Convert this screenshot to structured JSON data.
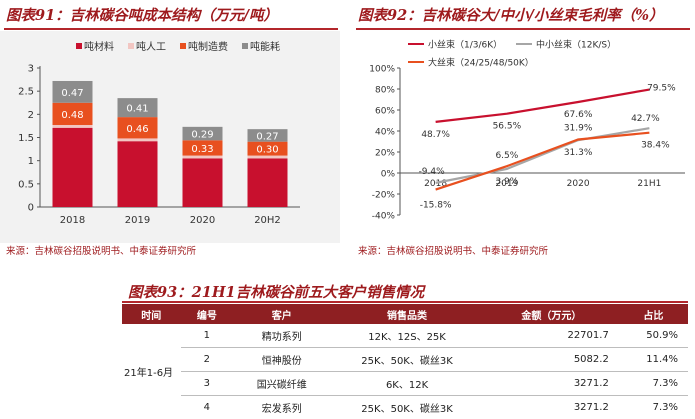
{
  "chart91": {
    "title": "图表91：吉林碳谷吨成本结构（万元/吨）",
    "source": "来源：吉林碳谷招股说明书、中泰证券研究所",
    "chart_data": {
      "type": "bar",
      "stacked": true,
      "categories": [
        "2018",
        "2019",
        "2020",
        "20H2"
      ],
      "series": [
        {
          "name": "吨材料",
          "color": "#c8102e",
          "values": [
            1.71,
            1.42,
            1.05,
            1.05
          ]
        },
        {
          "name": "吨人工",
          "color": "#f2c6c2",
          "values": [
            0.06,
            0.06,
            0.06,
            0.06
          ]
        },
        {
          "name": "吨制造费",
          "color": "#e8501f",
          "values": [
            0.48,
            0.46,
            0.33,
            0.3
          ]
        },
        {
          "name": "吨能耗",
          "color": "#8c8c8c",
          "values": [
            0.47,
            0.41,
            0.29,
            0.27
          ]
        }
      ],
      "ylim": [
        0,
        3
      ],
      "yticks": [
        "0",
        "0.5",
        "1",
        "1.5",
        "2",
        "2.5",
        "3"
      ],
      "labeled_series": [
        "吨制造费",
        "吨能耗"
      ],
      "labels": {
        "吨制造费": [
          "0.48",
          "0.46",
          "0.33",
          "0.30"
        ],
        "吨能耗": [
          "0.47",
          "0.41",
          "0.29",
          "0.27"
        ]
      },
      "legend": "top",
      "grid": false
    }
  },
  "chart92": {
    "title": "图表92：吉林碳谷大/中小/小丝束毛利率（%）",
    "source": "来源：吉林碳谷招股说明书、中泰证券研究所",
    "chart_data": {
      "type": "line",
      "categories": [
        "2018",
        "2019",
        "2020",
        "21H1"
      ],
      "series": [
        {
          "name": "小丝束（1/3/6K）",
          "color": "#c8102e",
          "values": [
            48.7,
            56.5,
            67.6,
            79.5
          ],
          "labels": [
            "48.7%",
            "56.5%",
            "67.6%",
            "79.5%"
          ]
        },
        {
          "name": "中小丝束（12K/S）",
          "color": "#a6a6a6",
          "values": [
            -9.4,
            3.9,
            31.3,
            42.7
          ],
          "labels": [
            "-9.4%",
            "3.9%",
            "31.3%",
            "42.7%"
          ]
        },
        {
          "name": "大丝束（24/25/48/50K）",
          "color": "#e8501f",
          "values": [
            -15.8,
            6.5,
            31.9,
            38.4
          ],
          "labels": [
            "-15.8%",
            "6.5%",
            "31.9%",
            "38.4%"
          ]
        }
      ],
      "ylim": [
        -40,
        100
      ],
      "yticks": [
        "-40%",
        "-20%",
        "0%",
        "20%",
        "40%",
        "60%",
        "80%",
        "100%"
      ],
      "legend": "top",
      "grid": false
    }
  },
  "table93": {
    "title": "图表93：21H1吉林碳谷前五大客户销售情况",
    "headers": [
      "时间",
      "编号",
      "客户",
      "销售品类",
      "金额（万元）",
      "占比"
    ],
    "period": "21年1-6月",
    "rows": [
      {
        "no": "1",
        "customer": "精功系列",
        "category": "12K、12S、25K",
        "amount": "22701.7",
        "share": "50.9%"
      },
      {
        "no": "2",
        "customer": "恒神股份",
        "category": "25K、50K、碳丝3K",
        "amount": "5082.2",
        "share": "11.4%"
      },
      {
        "no": "3",
        "customer": "国兴碳纤维",
        "category": "6K、12K",
        "amount": "3271.2",
        "share": "7.3%"
      },
      {
        "no": "4",
        "customer": "宏发系列",
        "category": "25K、50K、碳丝3K",
        "amount": "3271.2",
        "share": "7.3%"
      }
    ]
  }
}
